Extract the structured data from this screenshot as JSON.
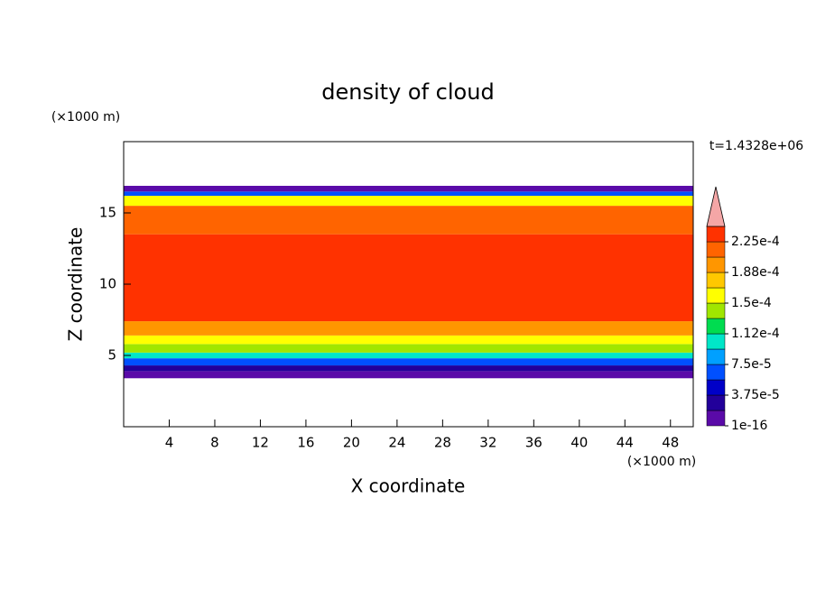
{
  "chart_data": {
    "type": "contour",
    "title": "density of cloud",
    "x_label": "X coordinate",
    "y_label": "Z coordinate",
    "x_unit": "(×1000 m)",
    "y_unit": "(×1000 m)",
    "annotation": "t=1.4328e+06",
    "xlim": [
      0,
      50
    ],
    "ylim": [
      0,
      20
    ],
    "xticks": [
      4,
      8,
      12,
      16,
      20,
      24,
      28,
      32,
      36,
      40,
      44,
      48
    ],
    "yticks": [
      5,
      10,
      15
    ],
    "field": {
      "z": [
        3.4,
        3.9,
        4.3,
        4.8,
        5.2,
        5.8,
        6.4,
        7.4,
        13.5,
        15.5,
        16.2,
        16.5,
        16.9
      ],
      "values": [
        1e-05,
        3e-05,
        6.5e-05,
        0.0001,
        0.000135,
        0.00016,
        0.0002,
        0.000235,
        0.000215,
        0.00015,
        6e-05,
        1e-05
      ]
    },
    "colorbar": {
      "levels": [
        1e-16,
        1.875e-05,
        3.75e-05,
        5.625e-05,
        7.5e-05,
        9.375e-05,
        0.0001125,
        0.00013125,
        0.00015,
        0.00016875,
        0.0001875,
        0.00020625,
        0.000225,
        0.00024375
      ],
      "colors": [
        "#5a0aa8",
        "#22009a",
        "#0000c8",
        "#0050ff",
        "#00a0ff",
        "#00e6c8",
        "#00dc50",
        "#a0e600",
        "#ffff00",
        "#ffc800",
        "#ff9600",
        "#ff6400",
        "#ff3200"
      ],
      "extend_color": "#f4a6a6",
      "ticks": [
        {
          "value": 1e-16,
          "label": "1e-16"
        },
        {
          "value": 3.75e-05,
          "label": "3.75e-5"
        },
        {
          "value": 7.5e-05,
          "label": "7.5e-5"
        },
        {
          "value": 0.0001125,
          "label": "1.12e-4"
        },
        {
          "value": 0.00015,
          "label": "1.5e-4"
        },
        {
          "value": 0.0001875,
          "label": "1.88e-4"
        },
        {
          "value": 0.000225,
          "label": "2.25e-4"
        }
      ]
    }
  }
}
